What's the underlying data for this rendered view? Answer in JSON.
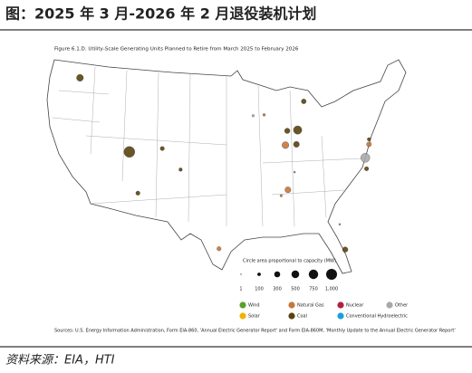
{
  "header": {
    "title": "图：2025 年 3 月-2026 年 2 月退役装机计划"
  },
  "figure": {
    "title": "Figure 6.1.D. Utility-Scale Generating Units Planned to Retire from March 2025 to February 2026",
    "size_legend": {
      "title": "Circle area proportional to capacity (MW)",
      "sizes": [
        {
          "value": 1,
          "label": "1"
        },
        {
          "value": 100,
          "label": "100"
        },
        {
          "value": 300,
          "label": "300"
        },
        {
          "value": 500,
          "label": "500"
        },
        {
          "value": 750,
          "label": "750"
        },
        {
          "value": 1000,
          "label": "1,000"
        }
      ]
    },
    "fuel_legend": [
      {
        "name": "Wind",
        "color": "#5aa02c"
      },
      {
        "name": "Natural Gas",
        "color": "#c8763a"
      },
      {
        "name": "Nuclear",
        "color": "#b22040"
      },
      {
        "name": "Other",
        "color": "#a8a8a8"
      },
      {
        "name": "Solar",
        "color": "#f0b400"
      },
      {
        "name": "Coal",
        "color": "#5a4310"
      },
      {
        "name": "Conventional Hydroelectric",
        "color": "#1aa0d8"
      }
    ],
    "points": [
      {
        "lon": -120.0,
        "lat": 47.5,
        "capacity_mw": 400,
        "fuel": "Coal"
      },
      {
        "lon": -111.9,
        "lat": 38.7,
        "capacity_mw": 1000,
        "fuel": "Coal"
      },
      {
        "lon": -106.5,
        "lat": 39.1,
        "capacity_mw": 150,
        "fuel": "Coal"
      },
      {
        "lon": -103.5,
        "lat": 36.6,
        "capacity_mw": 100,
        "fuel": "Coal"
      },
      {
        "lon": -110.5,
        "lat": 33.8,
        "capacity_mw": 150,
        "fuel": "Coal"
      },
      {
        "lon": -97.2,
        "lat": 27.2,
        "capacity_mw": 150,
        "fuel": "Natural Gas"
      },
      {
        "lon": -91.6,
        "lat": 43.0,
        "capacity_mw": 50,
        "fuel": "Other"
      },
      {
        "lon": -89.8,
        "lat": 43.1,
        "capacity_mw": 60,
        "fuel": "Natural Gas"
      },
      {
        "lon": -86.0,
        "lat": 41.2,
        "capacity_mw": 250,
        "fuel": "Coal"
      },
      {
        "lon": -84.3,
        "lat": 41.3,
        "capacity_mw": 600,
        "fuel": "Coal"
      },
      {
        "lon": -86.3,
        "lat": 39.5,
        "capacity_mw": 400,
        "fuel": "Natural Gas"
      },
      {
        "lon": -84.5,
        "lat": 39.6,
        "capacity_mw": 300,
        "fuel": "Coal"
      },
      {
        "lon": -83.3,
        "lat": 44.7,
        "capacity_mw": 200,
        "fuel": "Coal"
      },
      {
        "lon": -85.9,
        "lat": 34.2,
        "capacity_mw": 300,
        "fuel": "Natural Gas"
      },
      {
        "lon": -84.8,
        "lat": 36.3,
        "capacity_mw": 30,
        "fuel": "Natural Gas"
      },
      {
        "lon": -87.0,
        "lat": 33.5,
        "capacity_mw": 50,
        "fuel": "Natural Gas"
      },
      {
        "lon": -73.2,
        "lat": 38.0,
        "capacity_mw": 700,
        "fuel": "Other"
      },
      {
        "lon": -72.6,
        "lat": 39.6,
        "capacity_mw": 200,
        "fuel": "Natural Gas"
      },
      {
        "lon": -72.6,
        "lat": 40.2,
        "capacity_mw": 100,
        "fuel": "Coal"
      },
      {
        "lon": -73.0,
        "lat": 36.7,
        "capacity_mw": 150,
        "fuel": "Coal"
      },
      {
        "lon": -76.5,
        "lat": 27.1,
        "capacity_mw": 250,
        "fuel": "Coal"
      },
      {
        "lon": -77.4,
        "lat": 30.1,
        "capacity_mw": 30,
        "fuel": "Natural Gas"
      }
    ],
    "sources": "Sources: U.S. Energy Information Administration, Form EIA-860, 'Annual Electric Generator Report' and Form EIA-860M, 'Monthly Update to the Annual Electric Generator Report'"
  },
  "footer": {
    "source": "资料来源：EIA，HTI"
  }
}
